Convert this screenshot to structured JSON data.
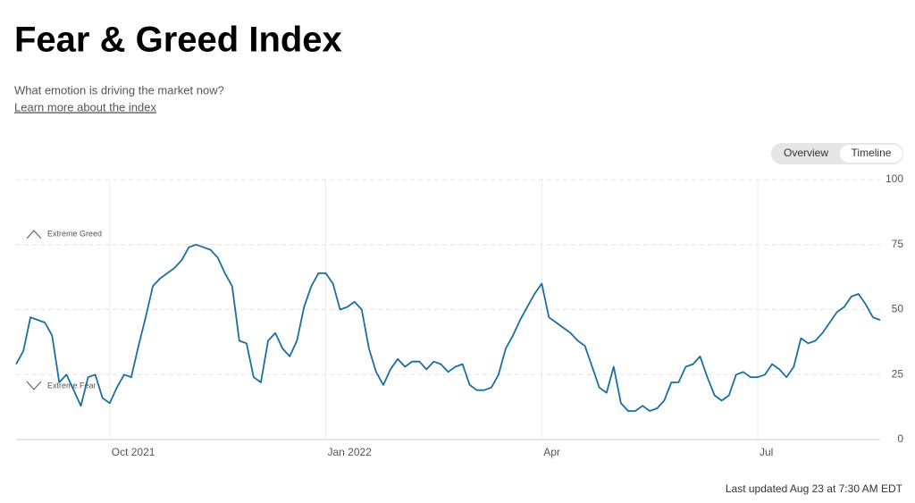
{
  "chart_data": {
    "type": "line",
    "title": "Fear & Greed Index",
    "subtitle": "What emotion is driving the market now?",
    "link": "Learn more about the index",
    "controls": [
      "Overview",
      "Timeline"
    ],
    "active_control": "Timeline",
    "footer": "Last updated Aug 23 at 7:30 AM EDT",
    "annotations": [
      {
        "text": "Extreme Greed",
        "direction": "up"
      },
      {
        "text": "Extreme Fear",
        "direction": "down"
      }
    ],
    "color": "#1b6f9e",
    "grid": true,
    "ylim": [
      0,
      100
    ],
    "yticks": [
      0,
      25,
      50,
      75,
      100
    ],
    "xticks": [
      {
        "value": 13,
        "label": "Oct 2021"
      },
      {
        "value": 43,
        "label": "Jan 2022"
      },
      {
        "value": 73,
        "label": "Apr"
      },
      {
        "value": 103,
        "label": "Jul"
      }
    ],
    "values": [
      29,
      34,
      47,
      46,
      45,
      40,
      22,
      25,
      19,
      13,
      24,
      25,
      16,
      14,
      20,
      25,
      24,
      36,
      47,
      59,
      62,
      64,
      66,
      69,
      74,
      75,
      74,
      73,
      70,
      64,
      59,
      38,
      37,
      24,
      22,
      38,
      41,
      35,
      32,
      38,
      51,
      59,
      64,
      64,
      60,
      50,
      51,
      53,
      50,
      35,
      26,
      21,
      27,
      31,
      28,
      30,
      30,
      27,
      30,
      29,
      26,
      28,
      29,
      21,
      19,
      19,
      20,
      25,
      35,
      40,
      46,
      51,
      56,
      60,
      47,
      45,
      43,
      41,
      38,
      36,
      28,
      20,
      18,
      28,
      14,
      11,
      11,
      13,
      11,
      12,
      15,
      22,
      22,
      28,
      29,
      32,
      24,
      17,
      15,
      17,
      25,
      26,
      24,
      24,
      25,
      29,
      27,
      24,
      28,
      39,
      37,
      38,
      41,
      45,
      49,
      51,
      55,
      56,
      52,
      47,
      46
    ]
  }
}
